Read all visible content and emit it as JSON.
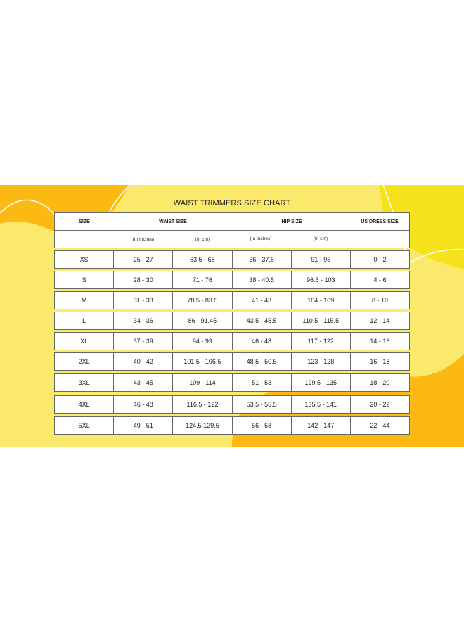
{
  "title": "WAIST TRIMMERS SIZE CHART",
  "colors": {
    "orange": "#fdb913",
    "light_yellow": "#fbe96c",
    "bright_yellow": "#f6e21a"
  },
  "header": {
    "size": "SIZE",
    "waist": "WAIST SIZE",
    "hip": "HIP SIZE",
    "us_dress": "US DRESS SIZE",
    "waist_in": "(In Inches)",
    "waist_cm": "(In cm)",
    "hip_in": "(In Inches)",
    "hip_cm": "(In cm)"
  },
  "rows": [
    [
      "XS",
      "25 - 27",
      "63.5 - 68",
      "36 - 37.5",
      "91 - 95",
      "0 - 2"
    ],
    [
      "S",
      "28 - 30",
      "71 - 76",
      "38 - 40.5",
      "96.5 - 103",
      "4 - 6"
    ],
    [
      "M",
      "31 - 33",
      "78.5 - 83.5",
      "41 - 43",
      "104 - 109",
      "8 - 10"
    ],
    [
      "L",
      "34 - 36",
      "86 - 91.45",
      "43.5 - 45.5",
      "110.5 - 115.5",
      "12 - 14"
    ],
    [
      "XL",
      "37 - 39",
      "94 - 99",
      "46 - 48",
      "117 - 122",
      "14 - 16"
    ],
    [
      "2XL",
      "40 - 42",
      "101.5 - 106.5",
      "48.5 - 50.5",
      "123 - 128",
      "16 - 18"
    ],
    [
      "3XL",
      "43 - 45",
      "109 - 114",
      "51 - 53",
      "129.5 - 135",
      "18 - 20"
    ],
    [
      "4XL",
      "46 - 48",
      "116.5 - 122",
      "53.5 - 55.5",
      "135.5 - 141",
      "20 - 22"
    ],
    [
      "5XL",
      "49 - 51",
      "124.5 129.5",
      "56 - 58",
      "142 - 147",
      "22 - 44"
    ]
  ]
}
